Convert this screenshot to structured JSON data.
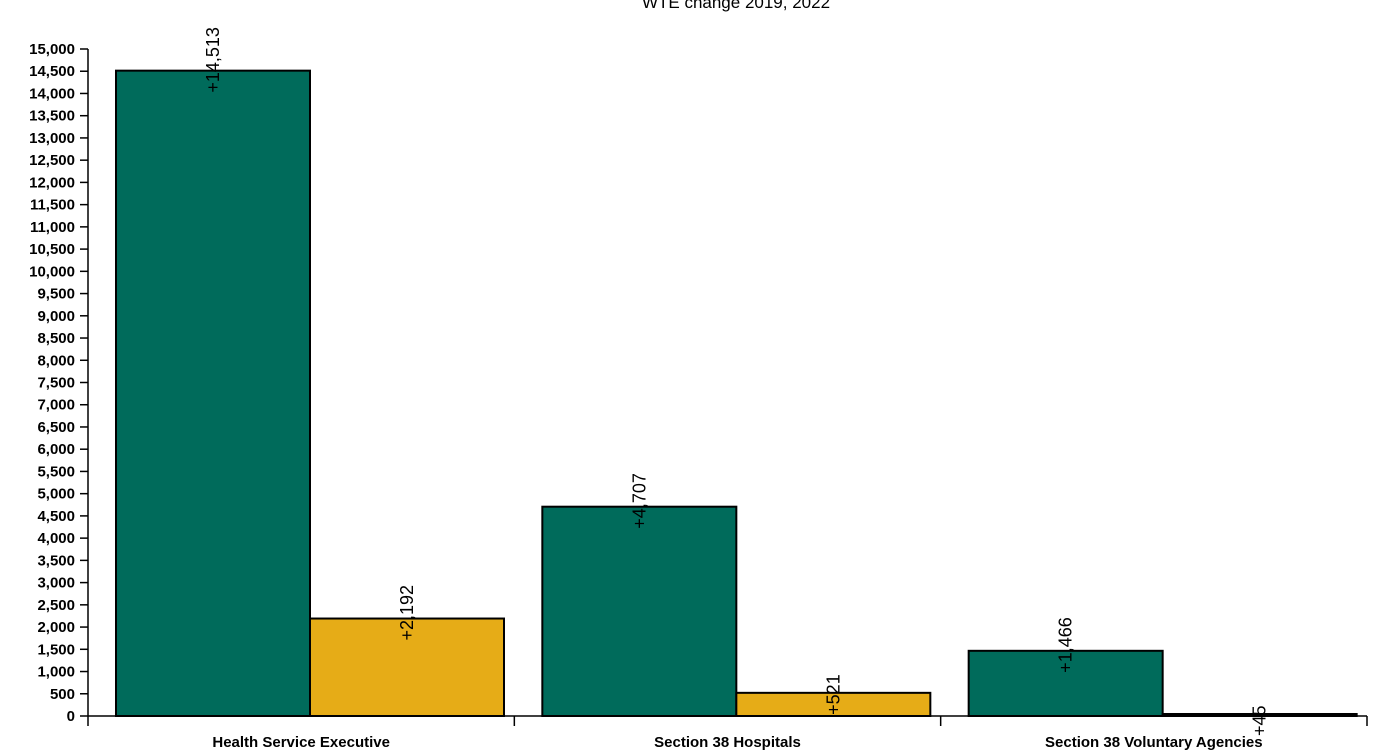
{
  "chart_data": {
    "type": "bar",
    "title": "WTE change 2019, 2022",
    "categories": [
      "Health Service Executive",
      "Section 38 Hospitals",
      "Section 38 Voluntary Agencies"
    ],
    "series": [
      {
        "values": [
          14513,
          4707,
          1466
        ],
        "labels": [
          "+14,513",
          "+4,707",
          "+1,466"
        ],
        "color": "#006b5b"
      },
      {
        "values": [
          2192,
          521,
          45
        ],
        "labels": [
          "+2,192",
          "+521",
          "+45"
        ],
        "color": "#e6ac17"
      }
    ],
    "ylim": [
      0,
      15000
    ],
    "ytick_step": 500,
    "ytick_labels": [
      "0",
      "500",
      "1,000",
      "1,500",
      "2,000",
      "2,500",
      "3,000",
      "3,500",
      "4,000",
      "4,500",
      "5,000",
      "5,500",
      "6,000",
      "6,500",
      "7,000",
      "7,500",
      "8,000",
      "8,500",
      "9,000",
      "9,500",
      "10,000",
      "10,500",
      "11,000",
      "11,500",
      "12,000",
      "12,500",
      "13,000",
      "13,500",
      "14,000",
      "14,500",
      "15,000"
    ],
    "grid": false,
    "legend": "none",
    "bar_edge_color": "#000000"
  }
}
